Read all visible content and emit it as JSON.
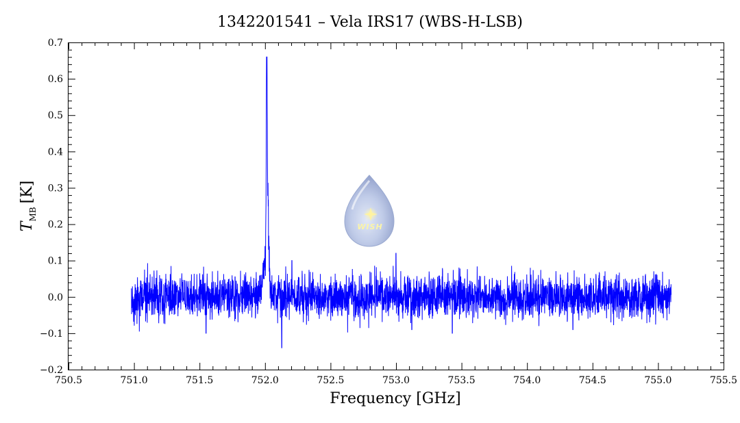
{
  "chart_data": {
    "type": "line",
    "title": "1342201541 – Vela IRS17 (WBS-H-LSB)",
    "xlabel": "Frequency [GHz]",
    "ylabel_main": "T",
    "ylabel_sub": "MB",
    "ylabel_unit": "[K]",
    "xlim": [
      750.5,
      755.5
    ],
    "ylim": [
      -0.2,
      0.7
    ],
    "x_ticks": [
      750.5,
      751.0,
      751.5,
      752.0,
      752.5,
      753.0,
      753.5,
      754.0,
      754.5,
      755.0,
      755.5
    ],
    "x_tick_labels": [
      "750.5",
      "751.0",
      "751.5",
      "752.0",
      "752.5",
      "753.0",
      "753.5",
      "754.0",
      "754.5",
      "755.0",
      "755.5"
    ],
    "y_ticks": [
      -0.2,
      -0.1,
      0.0,
      0.1,
      0.2,
      0.3,
      0.4,
      0.5,
      0.6,
      0.7
    ],
    "y_tick_labels": [
      "−0.2",
      "−0.1",
      "0.0",
      "0.1",
      "0.2",
      "0.3",
      "0.4",
      "0.5",
      "0.6",
      "0.7"
    ],
    "grid": false,
    "series": [
      {
        "color": "#0000ff",
        "x_range": [
          750.98,
          755.1
        ],
        "noise_rms": 0.03,
        "baseline": 0.0,
        "features": [
          {
            "x": 752.01,
            "peak": 0.65,
            "kind": "emission"
          },
          {
            "x": 751.99,
            "peak": 0.12,
            "kind": "emission-wing"
          },
          {
            "x": 752.03,
            "peak": 0.32,
            "kind": "emission-shoulder"
          },
          {
            "x": 752.13,
            "peak": -0.14,
            "kind": "absorption-spike"
          }
        ]
      }
    ]
  },
  "logo": {
    "text": "WISH",
    "icon": "wish-drop-logo",
    "x": 752.82,
    "y": 0.21
  }
}
